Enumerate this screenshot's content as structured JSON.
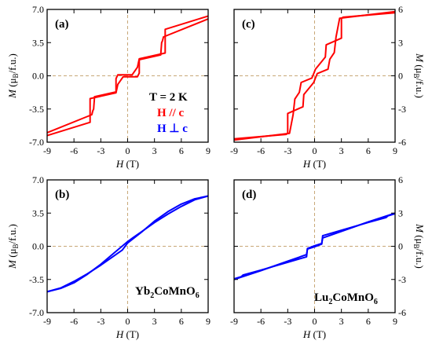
{
  "chart_data": [
    {
      "type": "line",
      "panel_label": "(a)",
      "xlim": [
        -9,
        9
      ],
      "ylim": [
        -7,
        7
      ],
      "xticks": [
        "-9",
        "-6",
        "-3",
        "0",
        "3",
        "6",
        "9"
      ],
      "yticks": [
        "-7.0",
        "-3.5",
        "0.0",
        "3.5",
        "7.0"
      ],
      "xlabel": "H (T)",
      "ylabel": "M (μB/f.u.)",
      "annotations": [
        "T = 2 K",
        "H // c",
        "H ⊥ c"
      ],
      "series": [
        {
          "color": "#ff0000",
          "x": [
            -9,
            -4.2,
            -4.2,
            -1.3,
            -1.1,
            -0.5,
            1.1,
            1.3,
            1.3,
            3.7,
            3.8,
            3.9,
            4.0,
            9
          ],
          "y": [
            -6.3,
            -4.9,
            -2.4,
            -1.8,
            -0.9,
            -0.1,
            -0.1,
            0.3,
            1.7,
            2.2,
            3.5,
            3.7,
            4.1,
            6.0
          ]
        },
        {
          "color": "#ff0000",
          "x": [
            9,
            4.2,
            4.2,
            1.3,
            1.1,
            0.5,
            -1.1,
            -1.3,
            -1.3,
            -3.7,
            -3.8,
            -3.9,
            -4.0,
            -9
          ],
          "y": [
            6.3,
            4.9,
            2.4,
            1.8,
            0.9,
            0.1,
            0.1,
            -0.3,
            -1.7,
            -2.2,
            -3.5,
            -3.7,
            -4.1,
            -6.0
          ]
        }
      ]
    },
    {
      "type": "line",
      "panel_label": "(b)",
      "xlim": [
        -9,
        9
      ],
      "ylim": [
        -7,
        7
      ],
      "xticks": [
        "-9",
        "-6",
        "-3",
        "0",
        "3",
        "6",
        "9"
      ],
      "yticks": [
        "-7.0",
        "-3.5",
        "0.0",
        "3.5",
        "7.0"
      ],
      "xlabel": "H (T)",
      "ylabel": "M (μB/f.u.)",
      "compound": "Yb2CoMnO6",
      "series": [
        {
          "color": "#0000ff",
          "x": [
            -9,
            -7.5,
            -6,
            -4.5,
            -3,
            -1.5,
            -0.6,
            0,
            1.5,
            3,
            4.5,
            6,
            7.5,
            9
          ],
          "y": [
            -4.8,
            -4.4,
            -3.7,
            -2.9,
            -2.0,
            -1.0,
            -0.4,
            0.35,
            1.45,
            2.65,
            3.65,
            4.45,
            5.0,
            5.3
          ]
        },
        {
          "color": "#0000ff",
          "x": [
            9,
            7.5,
            6,
            4.5,
            3,
            1.5,
            0.6,
            0,
            -1.5,
            -3,
            -4.5,
            -6,
            -7.5,
            -9
          ],
          "y": [
            5.3,
            4.9,
            4.2,
            3.4,
            2.5,
            1.5,
            0.9,
            0.5,
            -0.7,
            -1.9,
            -2.95,
            -3.85,
            -4.45,
            -4.8
          ]
        }
      ]
    },
    {
      "type": "line",
      "panel_label": "(c)",
      "xlim": [
        -9,
        9
      ],
      "ylim": [
        -6,
        6
      ],
      "xticks": [
        "-9",
        "-6",
        "-3",
        "0",
        "3",
        "6",
        "9"
      ],
      "yticks": [
        "-6",
        "-3",
        "0",
        "3",
        "6"
      ],
      "xlabel": "H (T)",
      "ylabel": "M (μB/f.u.)",
      "series": [
        {
          "color": "#ff0000",
          "x": [
            -9,
            -3.2,
            -3.0,
            -3.0,
            -1.3,
            -1.2,
            -0.1,
            0.1,
            0.3,
            1.5,
            1.7,
            2.2,
            2.4,
            2.8,
            9
          ],
          "y": [
            -5.7,
            -5.3,
            -5.2,
            -3.4,
            -2.8,
            -1.7,
            -0.6,
            -0.2,
            0.2,
            0.6,
            1.5,
            2.1,
            3.5,
            5.2,
            5.8
          ]
        },
        {
          "color": "#ff0000",
          "x": [
            9,
            3.2,
            3.0,
            3.0,
            1.3,
            1.2,
            0.1,
            -0.1,
            -0.3,
            -1.5,
            -1.7,
            -2.2,
            -2.4,
            -2.8,
            -9
          ],
          "y": [
            5.7,
            5.3,
            5.2,
            3.4,
            2.8,
            1.7,
            0.6,
            0.2,
            -0.2,
            -0.6,
            -1.5,
            -2.1,
            -3.5,
            -5.2,
            -5.8
          ]
        }
      ]
    },
    {
      "type": "line",
      "panel_label": "(d)",
      "xlim": [
        -9,
        9
      ],
      "ylim": [
        -6,
        6
      ],
      "xticks": [
        "-9",
        "-6",
        "-3",
        "0",
        "3",
        "6",
        "9"
      ],
      "yticks": [
        "-6",
        "-3",
        "0",
        "3",
        "6"
      ],
      "xlabel": "H (T)",
      "ylabel": "M (μB/f.u.)",
      "compound": "Lu2CoMnO6",
      "series": [
        {
          "color": "#0000ff",
          "x": [
            -9,
            -6,
            -3,
            -0.9,
            -0.8,
            0,
            0.8,
            0.9,
            3,
            6,
            8.0,
            8.2,
            9
          ],
          "y": [
            -3.0,
            -2.2,
            -1.35,
            -0.75,
            -0.25,
            -0.05,
            0.2,
            0.95,
            1.45,
            2.15,
            2.6,
            2.75,
            2.95
          ]
        },
        {
          "color": "#0000ff",
          "x": [
            9,
            6,
            3,
            0.9,
            0.8,
            0,
            -0.8,
            -0.9,
            -3,
            -6,
            -8.0,
            -8.2,
            -9
          ],
          "y": [
            3.0,
            2.2,
            1.35,
            0.75,
            0.25,
            0.05,
            -0.2,
            -0.95,
            -1.45,
            -2.15,
            -2.6,
            -2.75,
            -2.95
          ]
        }
      ]
    }
  ],
  "colors": {
    "hc_parallel": "#ff0000",
    "hc_perp": "#0000ff",
    "zero_lines": "#c8a878"
  }
}
